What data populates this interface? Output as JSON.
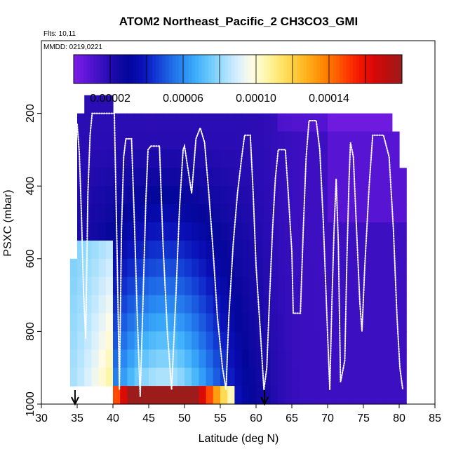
{
  "chart_data": {
    "type": "heatmap",
    "title": "ATOM2 Northeast_Pacific_2 CH3CO3_GMI",
    "flights_label": "Flts: 10,11",
    "dates_label": "MMDD: 0219,0221",
    "xlabel": "Latitude (deg N)",
    "ylabel": "PSXC (mbar)",
    "xlim": [
      30,
      85
    ],
    "ylim": [
      1000,
      0
    ],
    "x_ticks": [
      30,
      35,
      40,
      45,
      50,
      55,
      60,
      65,
      70,
      75,
      80,
      85
    ],
    "y_ticks": [
      200,
      400,
      600,
      800,
      1000
    ],
    "colorbar": {
      "min": 0.0,
      "max": 0.00018,
      "ticks": [
        2e-05,
        6e-05,
        0.0001,
        0.00014
      ],
      "tick_labels": [
        "0.00002",
        "0.00006",
        "0.00010",
        "0.00014"
      ],
      "colors": [
        "#7f1de6",
        "#5b16d6",
        "#3a0fbf",
        "#1a0aa8",
        "#04069a",
        "#0a0fb8",
        "#1238d2",
        "#1d64e4",
        "#2a8cf2",
        "#3fb0fb",
        "#6ecafc",
        "#a5dffd",
        "#d8f0fe",
        "#fffbe6",
        "#fff7b0",
        "#ffe871",
        "#ffd043",
        "#ffb21d",
        "#ff8f06",
        "#ff6a00",
        "#ff3a00",
        "#f21400",
        "#d60808",
        "#b81010",
        "#9c1b1b"
      ]
    },
    "x_cells": [
      34.5,
      35.5,
      36.5,
      37.5,
      38.5,
      39.5,
      40.5,
      41.5,
      42.5,
      43.5,
      44.5,
      45.5,
      46.5,
      47.5,
      48.5,
      49.5,
      50.5,
      51.5,
      52.5,
      53.5,
      54.5,
      55.5,
      56.5,
      57.5,
      58.5,
      59.5,
      60.5,
      61.5,
      62.5,
      63.5,
      64.5,
      65.5,
      66.5,
      67.5,
      68.5,
      69.5,
      70.5,
      71.5,
      72.5,
      73.5,
      74.5,
      75.5,
      76.5,
      77.5,
      78.5,
      79.5,
      80.5
    ],
    "p_cells": [
      175,
      225,
      275,
      325,
      375,
      425,
      475,
      525,
      575,
      625,
      675,
      725,
      775,
      825,
      875,
      925,
      975
    ],
    "flight_track": [
      [
        35.0,
        230
      ],
      [
        35.3,
        310
      ],
      [
        35.6,
        480
      ],
      [
        35.9,
        700
      ],
      [
        36.2,
        820
      ],
      [
        36.5,
        420
      ],
      [
        36.8,
        260
      ],
      [
        37.1,
        200
      ],
      [
        40.2,
        200
      ],
      [
        40.6,
        600
      ],
      [
        40.9,
        960
      ],
      [
        41.2,
        520
      ],
      [
        41.5,
        320
      ],
      [
        41.8,
        270
      ],
      [
        42.6,
        270
      ],
      [
        43.0,
        500
      ],
      [
        43.4,
        760
      ],
      [
        43.8,
        980
      ],
      [
        44.2,
        720
      ],
      [
        44.6,
        440
      ],
      [
        44.9,
        300
      ],
      [
        45.3,
        290
      ],
      [
        46.5,
        290
      ],
      [
        47.0,
        560
      ],
      [
        47.6,
        800
      ],
      [
        48.2,
        960
      ],
      [
        48.8,
        700
      ],
      [
        49.3,
        460
      ],
      [
        49.8,
        300
      ],
      [
        50.0,
        290
      ],
      [
        51.0,
        420
      ],
      [
        51.6,
        270
      ],
      [
        52.2,
        240
      ],
      [
        52.8,
        280
      ],
      [
        53.4,
        420
      ],
      [
        54.0,
        580
      ],
      [
        54.6,
        760
      ],
      [
        55.3,
        900
      ],
      [
        55.8,
        960
      ],
      [
        56.2,
        760
      ],
      [
        56.8,
        560
      ],
      [
        57.4,
        420
      ],
      [
        58.0,
        320
      ],
      [
        58.4,
        260
      ],
      [
        59.2,
        260
      ],
      [
        59.6,
        420
      ],
      [
        60.0,
        620
      ],
      [
        60.6,
        800
      ],
      [
        61.1,
        960
      ],
      [
        61.5,
        900
      ],
      [
        61.9,
        700
      ],
      [
        62.3,
        520
      ],
      [
        62.7,
        380
      ],
      [
        63.1,
        300
      ],
      [
        64.1,
        300
      ],
      [
        64.5,
        420
      ],
      [
        65.0,
        580
      ],
      [
        65.2,
        750
      ],
      [
        66.2,
        750
      ],
      [
        66.6,
        520
      ],
      [
        67.0,
        320
      ],
      [
        67.4,
        220
      ],
      [
        68.4,
        220
      ],
      [
        68.9,
        300
      ],
      [
        69.4,
        500
      ],
      [
        69.9,
        760
      ],
      [
        70.3,
        960
      ],
      [
        70.6,
        720
      ],
      [
        70.9,
        520
      ],
      [
        71.2,
        380
      ],
      [
        71.5,
        560
      ],
      [
        71.8,
        940
      ],
      [
        72.4,
        880
      ],
      [
        72.7,
        600
      ],
      [
        73.0,
        380
      ],
      [
        73.2,
        280
      ],
      [
        73.6,
        320
      ],
      [
        74.0,
        500
      ],
      [
        74.5,
        720
      ],
      [
        74.8,
        800
      ],
      [
        75.2,
        620
      ],
      [
        75.8,
        400
      ],
      [
        76.3,
        260
      ],
      [
        77.8,
        260
      ],
      [
        78.6,
        320
      ],
      [
        79.2,
        520
      ],
      [
        79.7,
        760
      ],
      [
        80.1,
        900
      ],
      [
        80.5,
        960
      ]
    ],
    "arrows": [
      34.7,
      61.2
    ]
  }
}
